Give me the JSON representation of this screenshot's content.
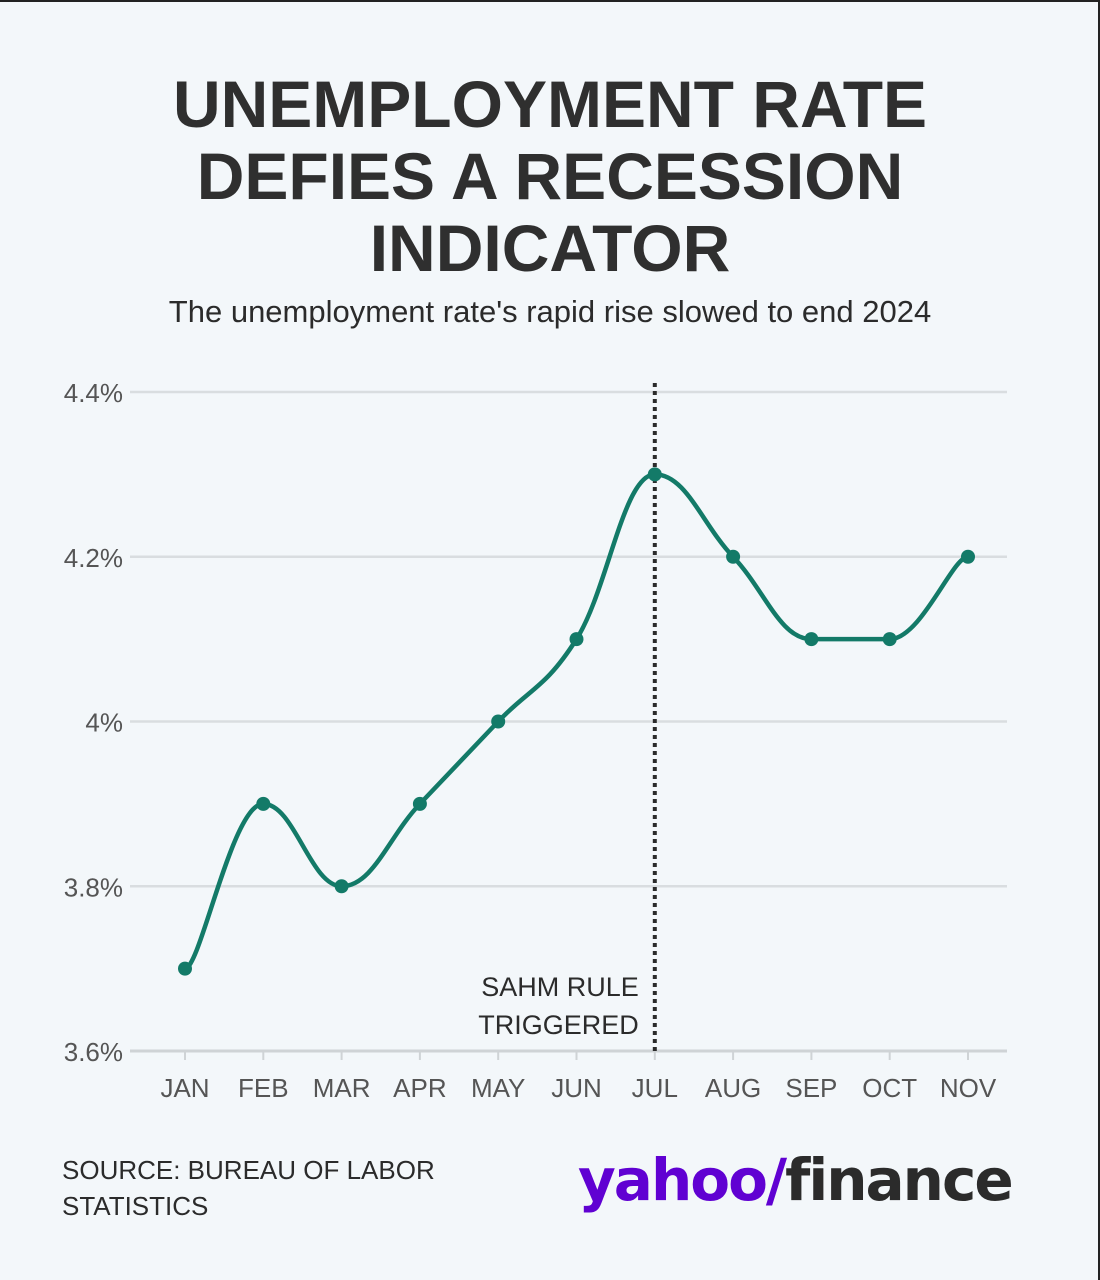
{
  "header": {
    "title_lines": [
      "UNEMPLOYMENT RATE",
      "DEFIES A RECESSION",
      "INDICATOR"
    ],
    "subtitle": "The unemployment rate's rapid rise slowed to end 2024"
  },
  "chart_data": {
    "type": "line",
    "title": "UNEMPLOYMENT RATE DEFIES A RECESSION INDICATOR",
    "subtitle": "The unemployment rate's rapid rise slowed to end 2024",
    "xlabel": "",
    "ylabel": "",
    "categories": [
      "JAN",
      "FEB",
      "MAR",
      "APR",
      "MAY",
      "JUN",
      "JUL",
      "AUG",
      "SEP",
      "OCT",
      "NOV"
    ],
    "series": [
      {
        "name": "Unemployment rate",
        "values": [
          3.7,
          3.9,
          3.8,
          3.9,
          4.0,
          4.1,
          4.3,
          4.2,
          4.1,
          4.1,
          4.2
        ],
        "color": "#137a68"
      }
    ],
    "ylim": [
      3.6,
      4.4
    ],
    "yticks": [
      3.6,
      3.8,
      4.0,
      4.2,
      4.4
    ],
    "ytick_labels": [
      "3.6%",
      "3.8%",
      "4%",
      "4.2%",
      "4.4%"
    ],
    "grid": true,
    "annotations": [
      {
        "category": "JUL",
        "style": "dotted-vertical-line",
        "lines": [
          "SAHM RULE",
          "TRIGGERED"
        ]
      }
    ]
  },
  "footer": {
    "source": "SOURCE: BUREAU OF LABOR STATISTICS",
    "logo_primary": "yahoo/",
    "logo_secondary": "finance"
  },
  "colors": {
    "background": "#f3f7fa",
    "line": "#137a68",
    "grid": "#d9dde0",
    "text": "#2b2b2b",
    "brand": "#6001d2"
  }
}
